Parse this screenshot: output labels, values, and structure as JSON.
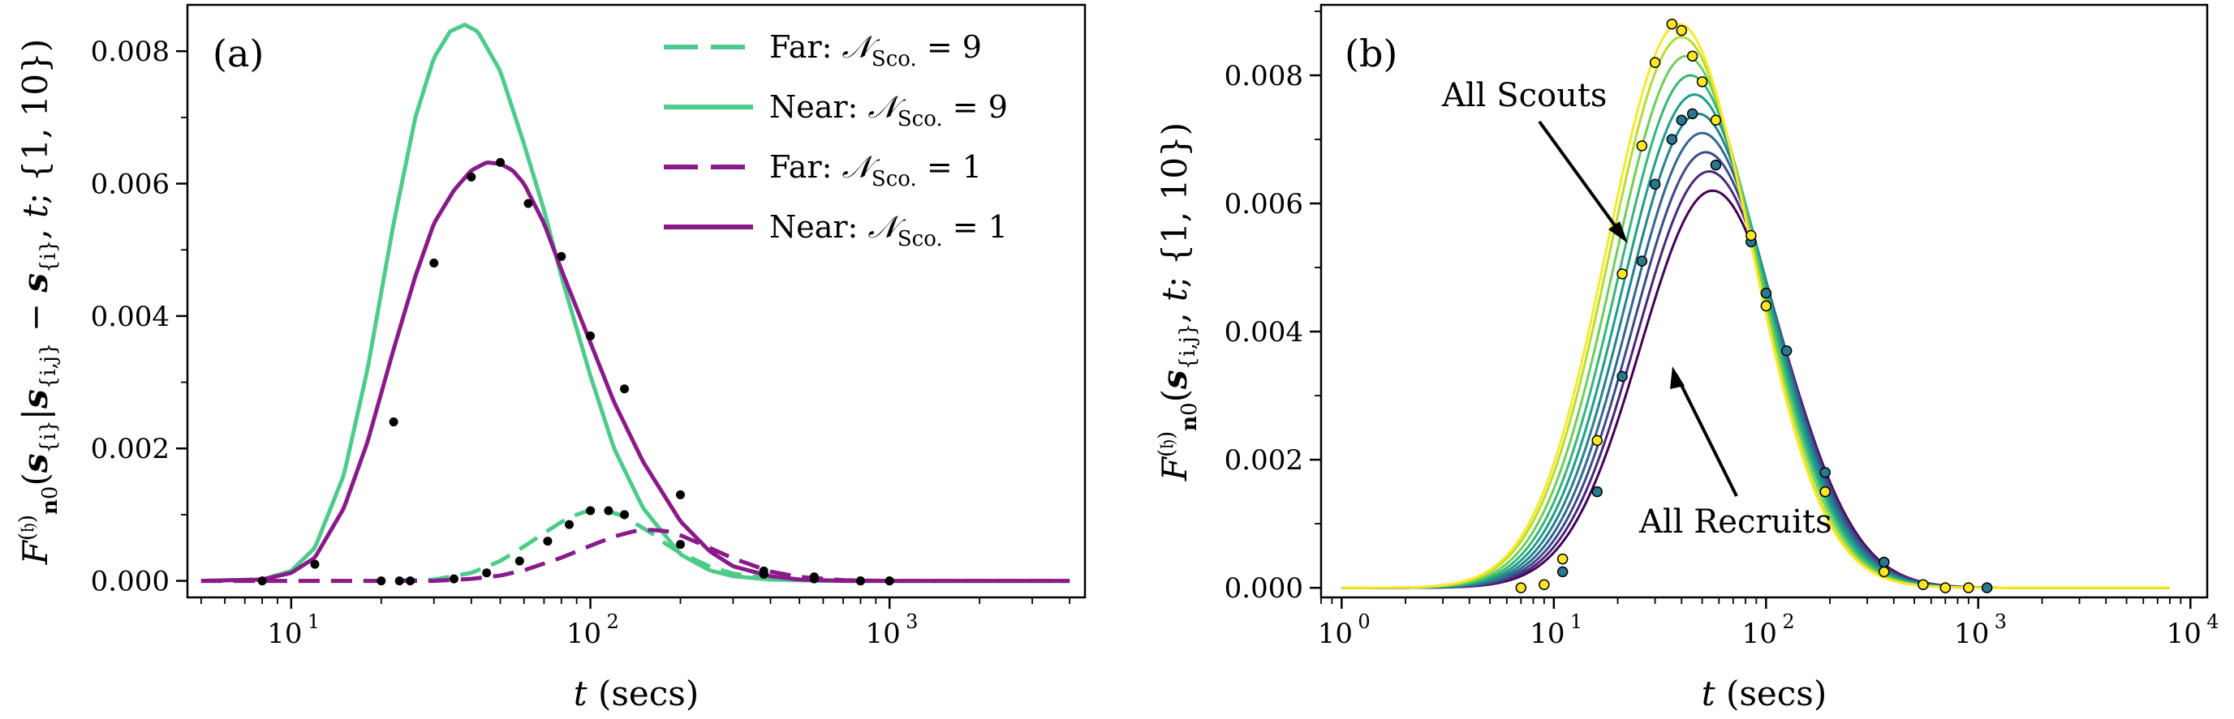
{
  "colors": {
    "green": "#4dcb8a",
    "purple": "#8a1a8a",
    "viridis": [
      "#440154",
      "#482878",
      "#3e4a89",
      "#31688e",
      "#26828e",
      "#1f9e89",
      "#35b779",
      "#6ece58",
      "#b5de2b",
      "#fde725"
    ]
  },
  "chart_data": [
    {
      "panel_label": "(a)",
      "type": "line",
      "xlabel": "t (secs)",
      "ylabel": "F_{n0}^{(h)}(s_{i}|s_{i,j} − s_{i}, t; {1,10})",
      "xscale": "log",
      "xlim": [
        4.5,
        4500
      ],
      "ylim": [
        -0.00025,
        0.0087
      ],
      "xticks": [
        {
          "value": 10,
          "label": "10",
          "exp": "1"
        },
        {
          "value": 100,
          "label": "10",
          "exp": "2"
        },
        {
          "value": 1000,
          "label": "10",
          "exp": "3"
        }
      ],
      "yticks": [
        {
          "value": 0,
          "label": "0.000"
        },
        {
          "value": 0.002,
          "label": "0.002"
        },
        {
          "value": 0.004,
          "label": "0.004"
        },
        {
          "value": 0.006,
          "label": "0.006"
        },
        {
          "value": 0.008,
          "label": "0.008"
        }
      ],
      "grid": false,
      "legend_position": "top-right",
      "series": [
        {
          "name": "Far:  N_Sco. = 9",
          "legend_prefix": "Far:",
          "legend_value": "9",
          "color": "green",
          "dash": true,
          "points": [
            [
              5,
              0
            ],
            [
              20,
              0
            ],
            [
              30,
              2e-05
            ],
            [
              40,
              0.00012
            ],
            [
              50,
              0.0003
            ],
            [
              60,
              0.00052
            ],
            [
              70,
              0.00072
            ],
            [
              80,
              0.00089
            ],
            [
              90,
              0.001
            ],
            [
              100,
              0.00107
            ],
            [
              110,
              0.00107
            ],
            [
              125,
              0.001
            ],
            [
              140,
              0.00088
            ],
            [
              160,
              0.00072
            ],
            [
              180,
              0.00055
            ],
            [
              200,
              0.00042
            ],
            [
              250,
              0.00022
            ],
            [
              300,
              0.00011
            ],
            [
              400,
              3e-05
            ],
            [
              500,
              1e-05
            ],
            [
              800,
              0
            ],
            [
              4000,
              0
            ]
          ]
        },
        {
          "name": "Near:  N_Sco. = 9",
          "legend_prefix": "Near:",
          "legend_value": "9",
          "color": "green",
          "dash": false,
          "points": [
            [
              5,
              0
            ],
            [
              8,
              2e-05
            ],
            [
              10,
              0.00015
            ],
            [
              12,
              0.0005
            ],
            [
              15,
              0.0016
            ],
            [
              18,
              0.0032
            ],
            [
              22,
              0.0054
            ],
            [
              26,
              0.007
            ],
            [
              30,
              0.0079
            ],
            [
              34,
              0.0083
            ],
            [
              38,
              0.0084
            ],
            [
              42,
              0.0083
            ],
            [
              50,
              0.0077
            ],
            [
              60,
              0.0066
            ],
            [
              70,
              0.0056
            ],
            [
              80,
              0.0046
            ],
            [
              100,
              0.0031
            ],
            [
              120,
              0.002
            ],
            [
              150,
              0.0011
            ],
            [
              200,
              0.0004
            ],
            [
              250,
              0.00016
            ],
            [
              300,
              7e-05
            ],
            [
              400,
              2e-05
            ],
            [
              600,
              0
            ],
            [
              4000,
              0
            ]
          ]
        },
        {
          "name": "Far:  N_Sco. = 1",
          "legend_prefix": "Far:",
          "legend_value": "1",
          "color": "purple",
          "dash": true,
          "points": [
            [
              5,
              0
            ],
            [
              30,
              0
            ],
            [
              40,
              3e-05
            ],
            [
              50,
              8e-05
            ],
            [
              60,
              0.00016
            ],
            [
              80,
              0.00035
            ],
            [
              100,
              0.00053
            ],
            [
              120,
              0.00067
            ],
            [
              140,
              0.00075
            ],
            [
              160,
              0.00077
            ],
            [
              180,
              0.00075
            ],
            [
              200,
              0.00069
            ],
            [
              250,
              0.0005
            ],
            [
              300,
              0.00034
            ],
            [
              400,
              0.00014
            ],
            [
              500,
              6e-05
            ],
            [
              700,
              1e-05
            ],
            [
              1000,
              0
            ],
            [
              4000,
              0
            ]
          ]
        },
        {
          "name": "Near:  N_Sco. = 1",
          "legend_prefix": "Near:",
          "legend_value": "1",
          "color": "purple",
          "dash": false,
          "points": [
            [
              5,
              0
            ],
            [
              8,
              2e-05
            ],
            [
              10,
              0.00012
            ],
            [
              12,
              0.00035
            ],
            [
              15,
              0.0011
            ],
            [
              18,
              0.0021
            ],
            [
              22,
              0.0035
            ],
            [
              26,
              0.0046
            ],
            [
              30,
              0.0054
            ],
            [
              35,
              0.0059
            ],
            [
              40,
              0.0062
            ],
            [
              45,
              0.00632
            ],
            [
              50,
              0.0063
            ],
            [
              55,
              0.0062
            ],
            [
              60,
              0.006
            ],
            [
              70,
              0.0054
            ],
            [
              80,
              0.0047
            ],
            [
              100,
              0.0036
            ],
            [
              120,
              0.0027
            ],
            [
              150,
              0.0018
            ],
            [
              200,
              0.0009
            ],
            [
              250,
              0.00045
            ],
            [
              300,
              0.00022
            ],
            [
              400,
              7e-05
            ],
            [
              500,
              2e-05
            ],
            [
              700,
              0
            ],
            [
              4000,
              0
            ]
          ]
        }
      ],
      "markers": {
        "color": "#000000",
        "points": [
          [
            8,
            0
          ],
          [
            12,
            0.00025
          ],
          [
            22,
            0.0024
          ],
          [
            30,
            0.0048
          ],
          [
            40,
            0.0061
          ],
          [
            50,
            0.00632
          ],
          [
            62,
            0.0057
          ],
          [
            80,
            0.0049
          ],
          [
            100,
            0.0037
          ],
          [
            130,
            0.0029
          ],
          [
            200,
            0.0013
          ],
          [
            380,
            0.0001
          ],
          [
            560,
            3e-05
          ],
          [
            800,
            0
          ],
          [
            1000,
            0
          ],
          [
            20,
            0
          ],
          [
            23,
            0
          ],
          [
            25,
            0
          ],
          [
            35,
            3e-05
          ],
          [
            45,
            0.00012
          ],
          [
            58,
            0.0003
          ],
          [
            72,
            0.0006
          ],
          [
            85,
            0.00085
          ],
          [
            100,
            0.00106
          ],
          [
            115,
            0.00106
          ],
          [
            130,
            0.001
          ],
          [
            200,
            0.00055
          ],
          [
            380,
            0.00015
          ],
          [
            560,
            6e-05
          ],
          [
            800,
            0
          ],
          [
            1000,
            0
          ]
        ]
      }
    },
    {
      "panel_label": "(b)",
      "type": "line",
      "xlabel": "t (secs)",
      "ylabel": "F_{n0}^{(h)}(s_{i,j}, t; {1,10})",
      "xscale": "log",
      "xlim": [
        0.8,
        12000
      ],
      "ylim": [
        -0.00015,
        0.0091
      ],
      "xticks": [
        {
          "value": 1,
          "label": "10",
          "exp": "0"
        },
        {
          "value": 10,
          "label": "10",
          "exp": "1"
        },
        {
          "value": 100,
          "label": "10",
          "exp": "2"
        },
        {
          "value": 1000,
          "label": "10",
          "exp": "3"
        },
        {
          "value": 10000,
          "label": "10",
          "exp": "4"
        }
      ],
      "yticks": [
        {
          "value": 0,
          "label": "0.000"
        },
        {
          "value": 0.002,
          "label": "0.002"
        },
        {
          "value": 0.004,
          "label": "0.004"
        },
        {
          "value": 0.006,
          "label": "0.006"
        },
        {
          "value": 0.008,
          "label": "0.008"
        }
      ],
      "grid": false,
      "curves": {
        "count": 10,
        "peaks": [
          0.0062,
          0.0065,
          0.0068,
          0.0071,
          0.0074,
          0.0077,
          0.008,
          0.0083,
          0.0086,
          0.0088
        ],
        "peak_times": [
          56,
          54,
          52,
          50,
          48,
          46,
          44,
          42,
          40,
          39
        ],
        "tmin": 1,
        "tmax": 8000
      },
      "annotations": [
        {
          "text": "All Scouts"
        },
        {
          "text": "All Recruits"
        }
      ],
      "markers": {
        "yellow_points": [
          [
            7,
            0
          ],
          [
            9,
            5e-05
          ],
          [
            11,
            0.00045
          ],
          [
            16,
            0.0023
          ],
          [
            21,
            0.0049
          ],
          [
            26,
            0.0069
          ],
          [
            30,
            0.0082
          ],
          [
            36,
            0.0088
          ],
          [
            40,
            0.0087
          ],
          [
            45,
            0.0083
          ],
          [
            50,
            0.0079
          ],
          [
            58,
            0.0073
          ],
          [
            85,
            0.0055
          ],
          [
            100,
            0.0044
          ],
          [
            190,
            0.0015
          ],
          [
            360,
            0.00025
          ],
          [
            550,
            5e-05
          ],
          [
            700,
            0
          ],
          [
            900,
            0
          ]
        ],
        "blue_points": [
          [
            11,
            0.00025
          ],
          [
            16,
            0.0015
          ],
          [
            21,
            0.0033
          ],
          [
            26,
            0.0051
          ],
          [
            30,
            0.0063
          ],
          [
            36,
            0.007
          ],
          [
            40,
            0.0073
          ],
          [
            45,
            0.0074
          ],
          [
            58,
            0.0066
          ],
          [
            85,
            0.0054
          ],
          [
            100,
            0.0046
          ],
          [
            125,
            0.0037
          ],
          [
            190,
            0.0018
          ],
          [
            360,
            0.0004
          ],
          [
            1100,
            0
          ]
        ]
      }
    }
  ]
}
